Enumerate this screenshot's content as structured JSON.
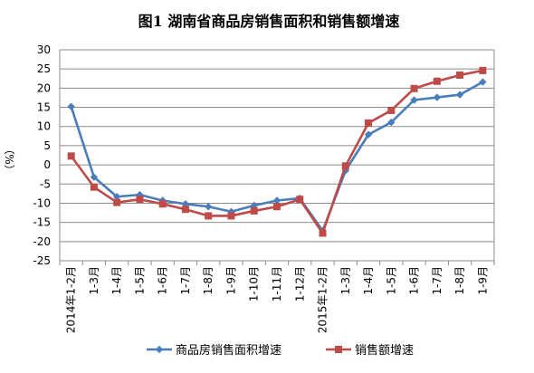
{
  "chart_data": {
    "type": "line",
    "title": "图1 湖南省商品房销售面积和销售额增速",
    "ylabel": "（%）",
    "ylim": [
      -25,
      30
    ],
    "ytick_step": 5,
    "grid": true,
    "legend_position": "bottom",
    "categories": [
      "2014年1-2月",
      "1-3月",
      "1-4月",
      "1-5月",
      "1-6月",
      "1-7月",
      "1-8月",
      "1-9月",
      "1-10月",
      "1-11月",
      "1-12月",
      "2015年1-2月",
      "1-3月",
      "1-4月",
      "1-5月",
      "1-6月",
      "1-7月",
      "1-8月",
      "1-9月"
    ],
    "series": [
      {
        "name": "商品房销售面积增速",
        "color": "#4a7ebb",
        "marker": "diamond",
        "values": [
          15.2,
          -3.2,
          -8.3,
          -7.8,
          -9.3,
          -10.2,
          -10.9,
          -12.2,
          -10.6,
          -9.3,
          -8.7,
          -17.2,
          -1.5,
          7.9,
          11.1,
          16.9,
          17.6,
          18.3,
          21.6
        ]
      },
      {
        "name": "销售额增速",
        "color": "#be4b48",
        "marker": "square",
        "values": [
          2.3,
          -5.8,
          -9.8,
          -9.0,
          -10.2,
          -11.6,
          -13.3,
          -13.3,
          -12.0,
          -10.9,
          -9.0,
          -17.8,
          -0.3,
          10.9,
          14.2,
          19.9,
          21.8,
          23.4,
          24.6
        ]
      }
    ]
  }
}
